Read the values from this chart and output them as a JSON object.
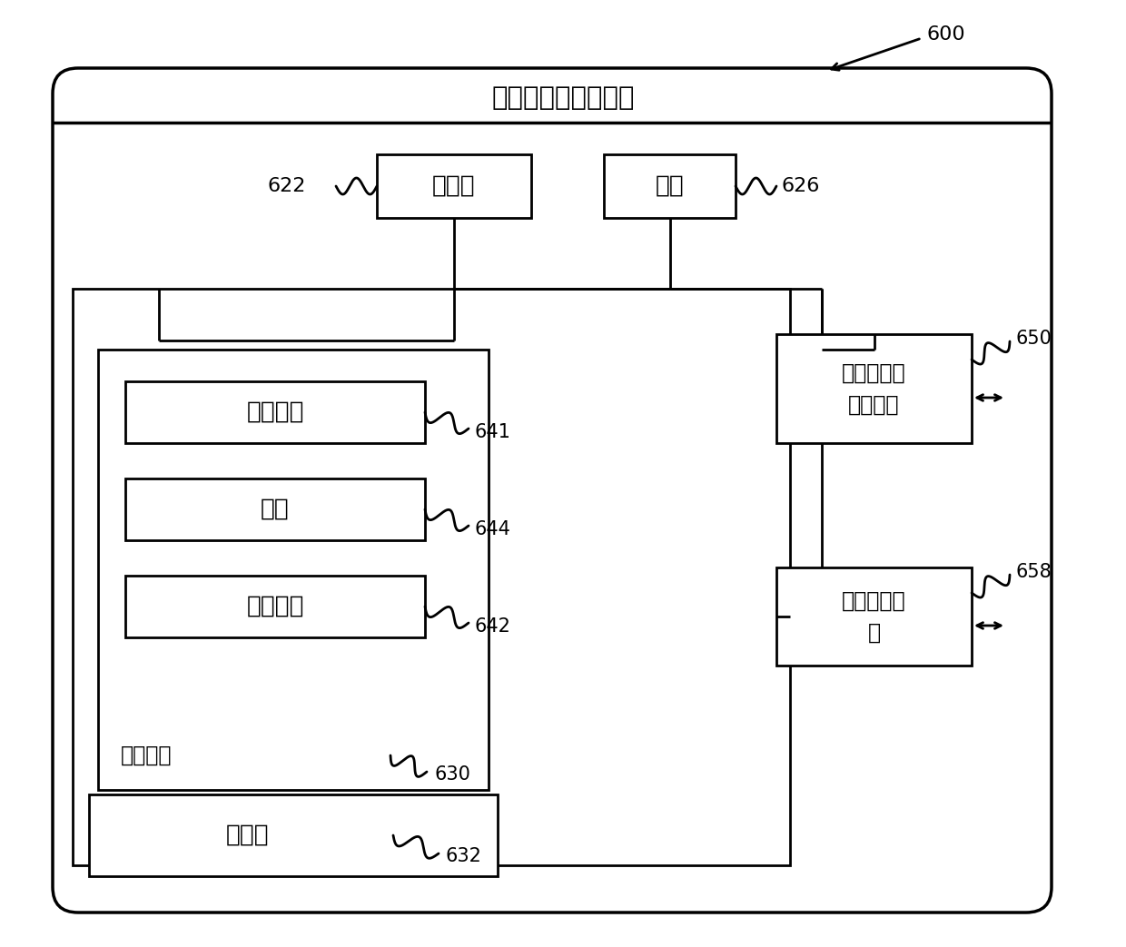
{
  "title": "目标数据的定位装置",
  "label_600": "600",
  "label_622": "622",
  "label_626": "626",
  "label_641": "641",
  "label_644": "644",
  "label_642": "642",
  "label_630": "630",
  "label_632": "632",
  "label_650": "650",
  "label_658": "658",
  "processor_text": "处理器",
  "power_text": "电源",
  "os_text": "操作系统",
  "data_text": "数据",
  "app_text": "应用程序",
  "storage_medium_text": "存储介质",
  "storage_text": "存储器",
  "network_text": "有线或无线\n网络接口",
  "io_text": "输入输出接\n口",
  "bg_color": "#ffffff",
  "box_edge_color": "#000000",
  "line_color": "#000000"
}
